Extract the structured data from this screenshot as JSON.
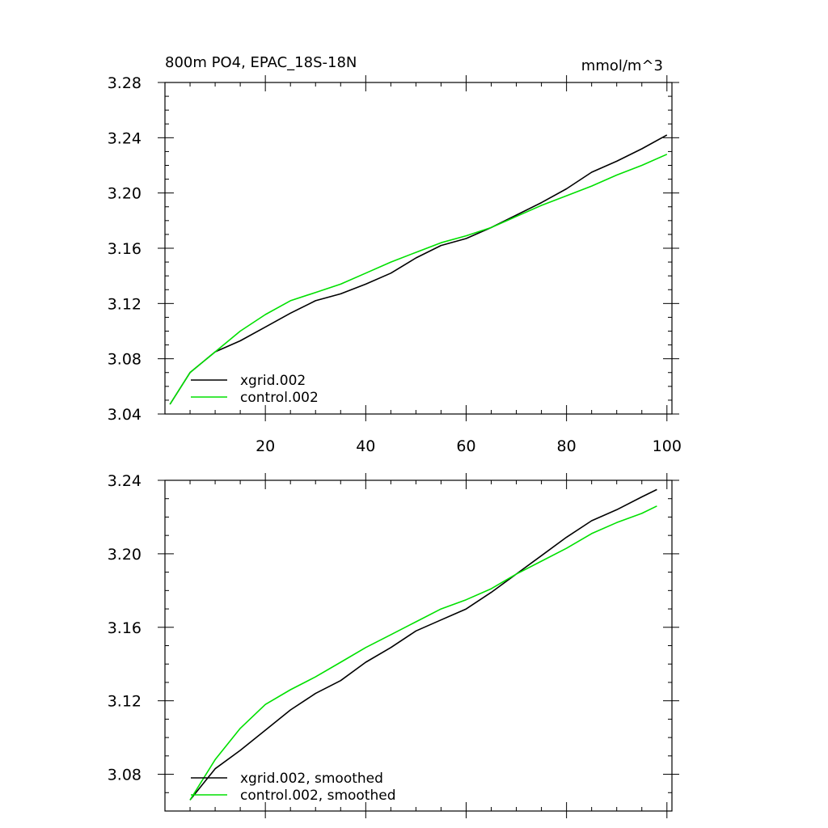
{
  "chart_data": [
    {
      "type": "line",
      "title": "800m PO4, EPAC_18S-18N",
      "units": "mmol/m^3",
      "xlim": [
        0,
        101
      ],
      "ylim": [
        3.04,
        3.28
      ],
      "xticks": [
        20,
        40,
        60,
        80,
        100
      ],
      "yticks": [
        3.04,
        3.08,
        3.12,
        3.16,
        3.2,
        3.24,
        3.28
      ],
      "xtick_labels": [
        "20",
        "40",
        "60",
        "80",
        "100"
      ],
      "ytick_labels": [
        "3.04",
        "3.08",
        "3.12",
        "3.16",
        "3.20",
        "3.24",
        "3.28"
      ],
      "legend_position": "bottom-left",
      "x": [
        1,
        5,
        10,
        15,
        20,
        25,
        30,
        35,
        40,
        45,
        50,
        55,
        60,
        65,
        70,
        75,
        80,
        85,
        90,
        95,
        100
      ],
      "series": [
        {
          "name": "xgrid.002",
          "color": "#000000",
          "values": [
            3.047,
            3.07,
            3.085,
            3.093,
            3.103,
            3.113,
            3.122,
            3.127,
            3.134,
            3.142,
            3.153,
            3.162,
            3.167,
            3.175,
            3.184,
            3.193,
            3.203,
            3.215,
            3.223,
            3.232,
            3.242
          ]
        },
        {
          "name": "control.002",
          "color": "#00e000",
          "values": [
            3.047,
            3.07,
            3.085,
            3.1,
            3.112,
            3.122,
            3.128,
            3.134,
            3.142,
            3.15,
            3.157,
            3.164,
            3.169,
            3.175,
            3.183,
            3.191,
            3.198,
            3.205,
            3.213,
            3.22,
            3.228
          ]
        }
      ]
    },
    {
      "type": "line",
      "title": "",
      "xlim": [
        0,
        101
      ],
      "ylim": [
        3.06,
        3.24
      ],
      "yticks": [
        3.08,
        3.12,
        3.16,
        3.2,
        3.24
      ],
      "ytick_labels": [
        "3.08",
        "3.12",
        "3.16",
        "3.20",
        "3.24"
      ],
      "legend_position": "bottom-left",
      "x": [
        5,
        10,
        15,
        20,
        25,
        30,
        35,
        40,
        45,
        50,
        55,
        60,
        65,
        70,
        75,
        80,
        85,
        90,
        95,
        98
      ],
      "series": [
        {
          "name": "xgrid.002, smoothed",
          "color": "#000000",
          "values": [
            3.066,
            3.083,
            3.093,
            3.104,
            3.115,
            3.124,
            3.131,
            3.141,
            3.149,
            3.158,
            3.164,
            3.17,
            3.179,
            3.189,
            3.199,
            3.209,
            3.218,
            3.224,
            3.231,
            3.235
          ]
        },
        {
          "name": "control.002, smoothed",
          "color": "#00e000",
          "values": [
            3.066,
            3.088,
            3.105,
            3.118,
            3.126,
            3.133,
            3.141,
            3.149,
            3.156,
            3.163,
            3.17,
            3.175,
            3.181,
            3.189,
            3.196,
            3.203,
            3.211,
            3.217,
            3.222,
            3.226
          ]
        }
      ]
    }
  ]
}
